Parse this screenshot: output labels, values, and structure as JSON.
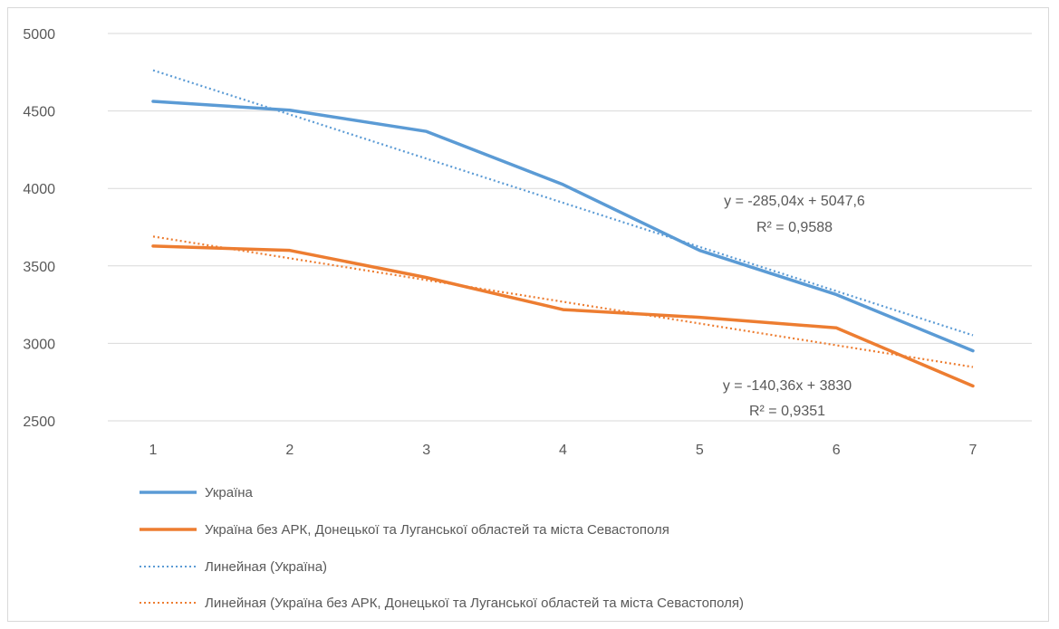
{
  "chart_data": {
    "type": "line",
    "categories": [
      "1",
      "2",
      "3",
      "4",
      "5",
      "6",
      "7"
    ],
    "ylim": [
      2500,
      5000
    ],
    "yticks": [
      2500,
      3000,
      3500,
      4000,
      4500,
      5000
    ],
    "grid": true,
    "legend_position": "bottom",
    "series": [
      {
        "name": "Україна",
        "values": [
          4562,
          4505,
          4368,
          4025,
          3600,
          3315,
          2952
        ],
        "color": "#5b9bd5",
        "style": "solid"
      },
      {
        "name": "Україна без АРК, Донецької та Луганської областей та міста Севастополя",
        "values": [
          3628,
          3600,
          3425,
          3218,
          3168,
          3100,
          2725
        ],
        "color": "#ed7d31",
        "style": "solid"
      }
    ],
    "trendlines": [
      {
        "name": "Линейная (Україна)",
        "slope": -285.04,
        "intercept": 5047.6,
        "color": "#5b9bd5",
        "style": "dotted",
        "equation": "y = -285,04x + 5047,6",
        "r2": "R² = 0,9588"
      },
      {
        "name": "Линейная (Україна без АРК, Донецької та Луганської областей та міста Севастополя)",
        "slope": -140.36,
        "intercept": 3830,
        "color": "#ed7d31",
        "style": "dotted",
        "equation": "y = -140,36x + 3830",
        "r2": "R² = 0,9351"
      }
    ]
  }
}
